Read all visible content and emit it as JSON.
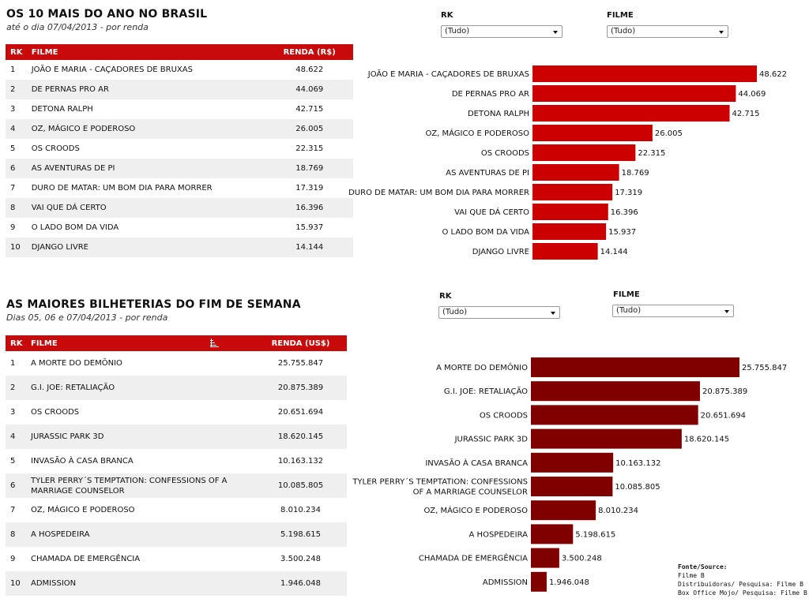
{
  "section1": {
    "title": "OS 10 MAIS DO ANO NO BRASIL",
    "subtitle": "até o dia 07/04/2013 - por renda",
    "table": {
      "headers": [
        "RK",
        "FILME",
        "RENDA (R$)"
      ],
      "rows": [
        {
          "rk": "1",
          "film": "JOÃO E MARIA - CAÇADORES DE BRUXAS",
          "value": "48.622"
        },
        {
          "rk": "2",
          "film": "DE PERNAS PRO AR",
          "value": "44.069"
        },
        {
          "rk": "3",
          "film": "DETONA RALPH",
          "value": "42.715"
        },
        {
          "rk": "4",
          "film": "OZ, MÁGICO E PODEROSO",
          "value": "26.005"
        },
        {
          "rk": "5",
          "film": "OS CROODS",
          "value": "22.315"
        },
        {
          "rk": "6",
          "film": "AS AVENTURAS DE PI",
          "value": "18.769"
        },
        {
          "rk": "7",
          "film": "DURO DE MATAR: UM BOM DIA PARA MORRER",
          "value": "17.319"
        },
        {
          "rk": "8",
          "film": "VAI QUE DÁ CERTO",
          "value": "16.396"
        },
        {
          "rk": "9",
          "film": "O LADO BOM DA VIDA",
          "value": "15.937"
        },
        {
          "rk": "10",
          "film": "DJANGO LIVRE",
          "value": "14.144"
        }
      ]
    },
    "filters": {
      "rk_label": "RK",
      "rk_value": "(Tudo)",
      "film_label": "FILME",
      "film_value": "(Tudo)"
    }
  },
  "section2": {
    "title": "AS MAIORES BILHETERIAS DO FIM DE SEMANA",
    "subtitle": "Dias 05, 06 e 07/04/2013 - por renda",
    "table": {
      "headers": [
        "RK",
        "FILME",
        "RENDA (US$)"
      ],
      "sort_icon": "sort-bars-icon",
      "rows": [
        {
          "rk": "1",
          "film": "A MORTE DO DEMÔNIO",
          "value": "25.755.847"
        },
        {
          "rk": "2",
          "film": "G.I. JOE: RETALIAÇÃO",
          "value": "20.875.389"
        },
        {
          "rk": "3",
          "film": "OS CROODS",
          "value": "20.651.694"
        },
        {
          "rk": "4",
          "film": "JURASSIC PARK 3D",
          "value": "18.620.145"
        },
        {
          "rk": "5",
          "film": "INVASÃO À CASA BRANCA",
          "value": "10.163.132"
        },
        {
          "rk": "6",
          "film": "TYLER PERRY´S TEMPTATION: CONFESSIONS OF A MARRIAGE COUNSELOR",
          "value": "10.085.805"
        },
        {
          "rk": "7",
          "film": "OZ, MÁGICO E PODEROSO",
          "value": "8.010.234"
        },
        {
          "rk": "8",
          "film": "A HOSPEDEIRA",
          "value": "5.198.615"
        },
        {
          "rk": "9",
          "film": "CHAMADA DE EMERGÊNCIA",
          "value": "3.500.248"
        },
        {
          "rk": "10",
          "film": "ADMISSION",
          "value": "1.946.048"
        }
      ]
    },
    "filters": {
      "rk_label": "RK",
      "rk_value": "(Tudo)",
      "film_label": "FILME",
      "film_value": "(Tudo)"
    }
  },
  "source": {
    "title": "Fonte/Source:",
    "lines": [
      "Filme B",
      "Distribuidoras/ Pesquisa: Filme B",
      "Box Office Mojo/ Pesquisa: Filme B"
    ]
  },
  "colors": {
    "header_red": "#c90a0a",
    "bar1": "#cc0000",
    "bar2": "#800000",
    "row_alt": "#efefef"
  },
  "chart_data": [
    {
      "type": "bar",
      "orientation": "horizontal",
      "categories": [
        "JOÃO E MARIA - CAÇADORES DE BRUXAS",
        "DE PERNAS PRO AR",
        "DETONA RALPH",
        "OZ, MÁGICO E PODEROSO",
        "OS CROODS",
        "AS AVENTURAS DE PI",
        "DURO DE MATAR: UM BOM DIA PARA MORRER",
        "VAI QUE DÁ CERTO",
        "O LADO BOM DA VIDA",
        "DJANGO LIVRE"
      ],
      "values": [
        48622,
        44069,
        42715,
        26005,
        22315,
        18769,
        17319,
        16396,
        15937,
        14144
      ],
      "value_labels": [
        "48.622",
        "44.069",
        "42.715",
        "26.005",
        "22.315",
        "18.769",
        "17.319",
        "16.396",
        "15.937",
        "14.144"
      ],
      "title": "",
      "xlabel": "",
      "ylabel": "",
      "grid": false,
      "legend": false
    },
    {
      "type": "bar",
      "orientation": "horizontal",
      "categories": [
        "A MORTE DO DEMÔNIO",
        "G.I. JOE: RETALIAÇÃO",
        "OS CROODS",
        "JURASSIC PARK 3D",
        "INVASÃO À CASA BRANCA",
        "TYLER PERRY´S TEMPTATION: CONFESSIONS OF A MARRIAGE COUNSELOR",
        "OZ, MÁGICO E PODEROSO",
        "A HOSPEDEIRA",
        "CHAMADA DE EMERGÊNCIA",
        "ADMISSION"
      ],
      "values": [
        25755847,
        20875389,
        20651694,
        18620145,
        10163132,
        10085805,
        8010234,
        5198615,
        3500248,
        1946048
      ],
      "value_labels": [
        "25.755.847",
        "20.875.389",
        "20.651.694",
        "18.620.145",
        "10.163.132",
        "10.085.805",
        "8.010.234",
        "5.198.615",
        "3.500.248",
        "1.946.048"
      ],
      "title": "",
      "xlabel": "",
      "ylabel": "",
      "grid": false,
      "legend": false
    }
  ]
}
